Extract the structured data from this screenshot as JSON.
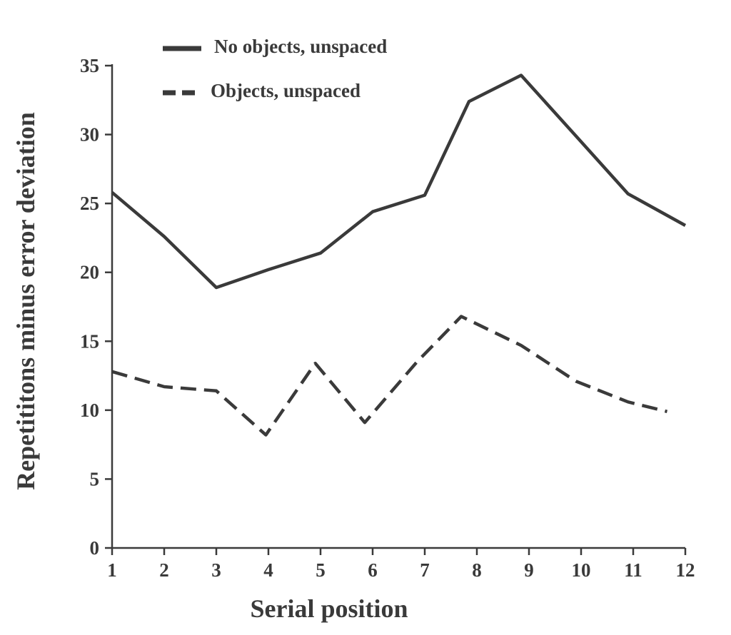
{
  "chart_data": {
    "type": "line",
    "title": "",
    "xlabel": "Serial position",
    "ylabel": "Repetititons minus error deviation",
    "x": [
      1,
      2,
      3,
      4,
      5,
      6,
      7,
      8,
      9,
      10,
      11,
      12
    ],
    "xticks": [
      "1",
      "2",
      "3",
      "4",
      "5",
      "6",
      "7",
      "8",
      "9",
      "10",
      "11",
      "12"
    ],
    "yticks": [
      "0",
      "5",
      "10",
      "15",
      "20",
      "25",
      "30",
      "35"
    ],
    "xlim": [
      1,
      12
    ],
    "ylim": [
      0,
      35
    ],
    "grid": false,
    "legend_position": "top-left",
    "series": [
      {
        "name": "No objects, unspaced",
        "style": "solid",
        "color": "#3a3a3a",
        "points": [
          [
            1,
            25.8
          ],
          [
            2,
            22.6
          ],
          [
            3,
            18.9
          ],
          [
            4,
            20.2
          ],
          [
            5,
            21.4
          ],
          [
            6,
            24.4
          ],
          [
            7,
            25.6
          ],
          [
            7.85,
            32.4
          ],
          [
            8.85,
            34.3
          ],
          [
            9.9,
            29.9
          ],
          [
            10.9,
            25.7
          ],
          [
            12,
            23.4
          ]
        ]
      },
      {
        "name": "Objects, unspaced",
        "style": "dashed",
        "color": "#3a3a3a",
        "points": [
          [
            1,
            12.8
          ],
          [
            2,
            11.7
          ],
          [
            3,
            11.4
          ],
          [
            3.95,
            8.2
          ],
          [
            4.9,
            13.4
          ],
          [
            5.85,
            9.1
          ],
          [
            6.85,
            13.5
          ],
          [
            7.7,
            16.8
          ],
          [
            8.85,
            14.7
          ],
          [
            9.9,
            12.1
          ],
          [
            10.9,
            10.6
          ],
          [
            11.65,
            9.9
          ]
        ]
      }
    ]
  }
}
